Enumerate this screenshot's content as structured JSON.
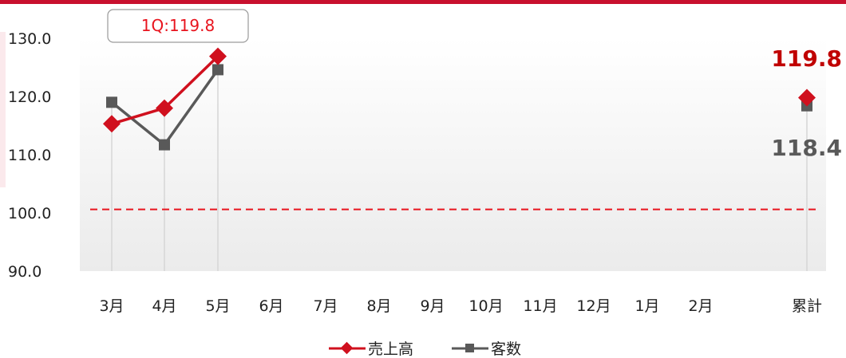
{
  "chart_data": {
    "type": "line",
    "categories": [
      "3月",
      "4月",
      "5月",
      "6月",
      "7月",
      "8月",
      "9月",
      "10月",
      "11月",
      "12月",
      "1月",
      "2月",
      "累計"
    ],
    "series": [
      {
        "name": "売上高",
        "values": [
          115.3,
          118.0,
          126.9,
          null,
          null,
          null,
          null,
          null,
          null,
          null,
          null,
          null,
          119.8
        ],
        "color": "#d0101e",
        "marker": "diamond"
      },
      {
        "name": "客数",
        "values": [
          119.0,
          111.7,
          124.6,
          null,
          null,
          null,
          null,
          null,
          null,
          null,
          null,
          null,
          118.4
        ],
        "color": "#595959",
        "marker": "square"
      }
    ],
    "yticks": [
      "130.0",
      "120.0",
      "110.0",
      "100.0",
      "90.0"
    ],
    "ylim": [
      90,
      130
    ],
    "reference_line": {
      "value": 100.6,
      "color": "#e8141e",
      "style": "dashed"
    },
    "callout": "1Q:119.8",
    "total_labels": {
      "sales": "119.8",
      "customers": "118.4"
    },
    "grid": false,
    "legend_position": "bottom-center"
  }
}
